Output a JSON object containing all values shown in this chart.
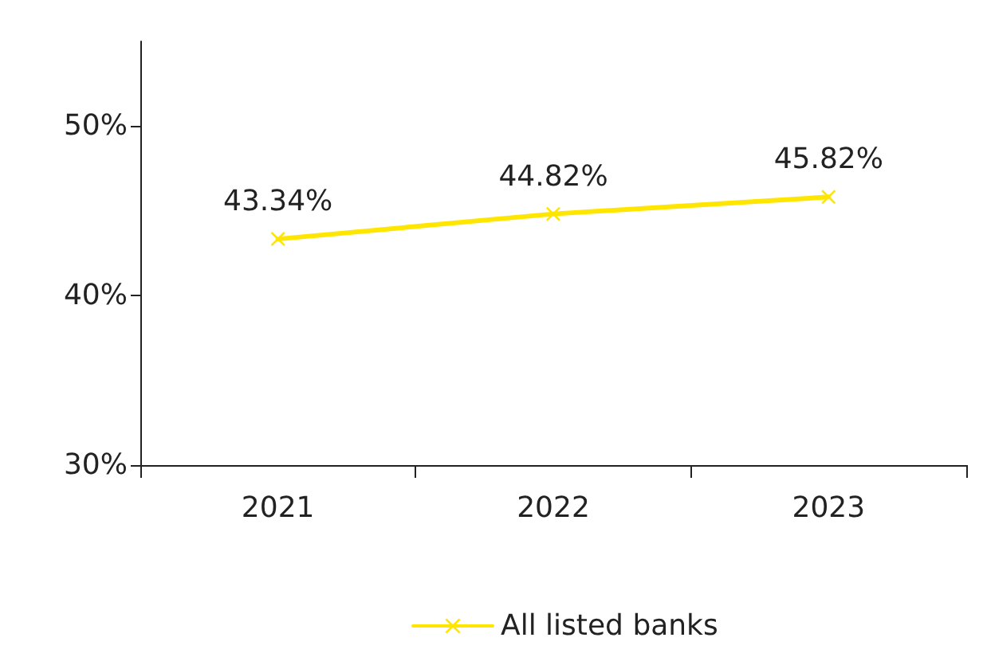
{
  "chart_data": {
    "type": "line",
    "categories": [
      "2021",
      "2022",
      "2023"
    ],
    "series": [
      {
        "name": "All listed banks",
        "color": "#ffe600",
        "values": [
          43.34,
          44.82,
          45.82
        ],
        "value_labels": [
          "43.34%",
          "44.82%",
          "45.82%"
        ]
      }
    ],
    "ylim": [
      30,
      55
    ],
    "yticks": [
      {
        "value": 30,
        "label": "30%"
      },
      {
        "value": 40,
        "label": "40%"
      },
      {
        "value": 50,
        "label": "50%"
      }
    ],
    "grid": false,
    "legend": "bottom",
    "marker": "cross",
    "line_style": "solid"
  }
}
